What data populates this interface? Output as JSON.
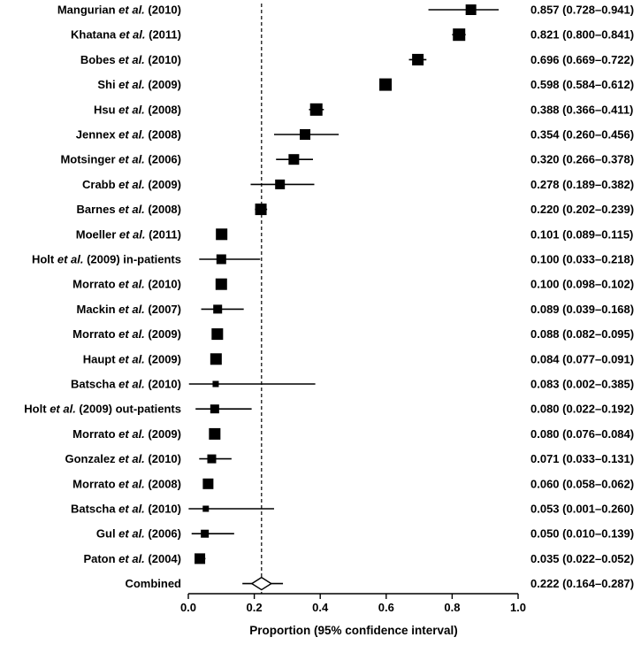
{
  "colors": {
    "marker": "#000000",
    "background": "#ffffff",
    "line": "#000000"
  },
  "chart_data": {
    "type": "scatter",
    "subtype": "forest-plot",
    "title": "",
    "xlabel": "Proportion (95% confidence interval)",
    "ylabel": "",
    "xlim": [
      0.0,
      1.0
    ],
    "x_ticks": [
      0.0,
      0.2,
      0.4,
      0.6,
      0.8,
      1.0
    ],
    "dashed_line_at": 0.222,
    "studies": [
      {
        "label": "Mangurian et al. (2010)",
        "est": 0.857,
        "lo": 0.728,
        "hi": 0.941,
        "size": 12
      },
      {
        "label": "Khatana et al. (2011)",
        "est": 0.821,
        "lo": 0.8,
        "hi": 0.841,
        "size": 14
      },
      {
        "label": "Bobes et al. (2010)",
        "est": 0.696,
        "lo": 0.669,
        "hi": 0.722,
        "size": 13
      },
      {
        "label": "Shi et al. (2009)",
        "est": 0.598,
        "lo": 0.584,
        "hi": 0.612,
        "size": 14
      },
      {
        "label": "Hsu et al. (2008)",
        "est": 0.388,
        "lo": 0.366,
        "hi": 0.411,
        "size": 14
      },
      {
        "label": "Jennex et al. (2008)",
        "est": 0.354,
        "lo": 0.26,
        "hi": 0.456,
        "size": 12
      },
      {
        "label": "Motsinger et al. (2006)",
        "est": 0.32,
        "lo": 0.266,
        "hi": 0.378,
        "size": 12
      },
      {
        "label": "Crabb et al. (2009)",
        "est": 0.278,
        "lo": 0.189,
        "hi": 0.382,
        "size": 11
      },
      {
        "label": "Barnes et al. (2008)",
        "est": 0.22,
        "lo": 0.202,
        "hi": 0.239,
        "size": 13
      },
      {
        "label": "Moeller et al. (2011)",
        "est": 0.101,
        "lo": 0.089,
        "hi": 0.115,
        "size": 13
      },
      {
        "label": "Holt et al. (2009) in-patients",
        "est": 0.1,
        "lo": 0.033,
        "hi": 0.218,
        "size": 11
      },
      {
        "label": "Morrato et al. (2010)",
        "est": 0.1,
        "lo": 0.098,
        "hi": 0.102,
        "size": 13
      },
      {
        "label": "Mackin et al. (2007)",
        "est": 0.089,
        "lo": 0.039,
        "hi": 0.168,
        "size": 10
      },
      {
        "label": "Morrato et al. (2009)",
        "est": 0.088,
        "lo": 0.082,
        "hi": 0.095,
        "size": 13
      },
      {
        "label": "Haupt et al. (2009)",
        "est": 0.084,
        "lo": 0.077,
        "hi": 0.091,
        "size": 13
      },
      {
        "label": "Batscha et al. (2010)",
        "est": 0.083,
        "lo": 0.002,
        "hi": 0.385,
        "size": 7
      },
      {
        "label": "Holt et al. (2009) out-patients",
        "est": 0.08,
        "lo": 0.022,
        "hi": 0.192,
        "size": 10
      },
      {
        "label": "Morrato et al. (2009)",
        "est": 0.08,
        "lo": 0.076,
        "hi": 0.084,
        "size": 13
      },
      {
        "label": "Gonzalez et al. (2010)",
        "est": 0.071,
        "lo": 0.033,
        "hi": 0.131,
        "size": 10
      },
      {
        "label": "Morrato et al. (2008)",
        "est": 0.06,
        "lo": 0.058,
        "hi": 0.062,
        "size": 12
      },
      {
        "label": "Batscha et al. (2010)",
        "est": 0.053,
        "lo": 0.001,
        "hi": 0.26,
        "size": 7
      },
      {
        "label": "Gul et al. (2006)",
        "est": 0.05,
        "lo": 0.01,
        "hi": 0.139,
        "size": 9
      },
      {
        "label": "Paton et al. (2004)",
        "est": 0.035,
        "lo": 0.022,
        "hi": 0.052,
        "size": 12
      },
      {
        "label": "Combined",
        "est": 0.222,
        "lo": 0.164,
        "hi": 0.287,
        "combined": true
      }
    ]
  }
}
